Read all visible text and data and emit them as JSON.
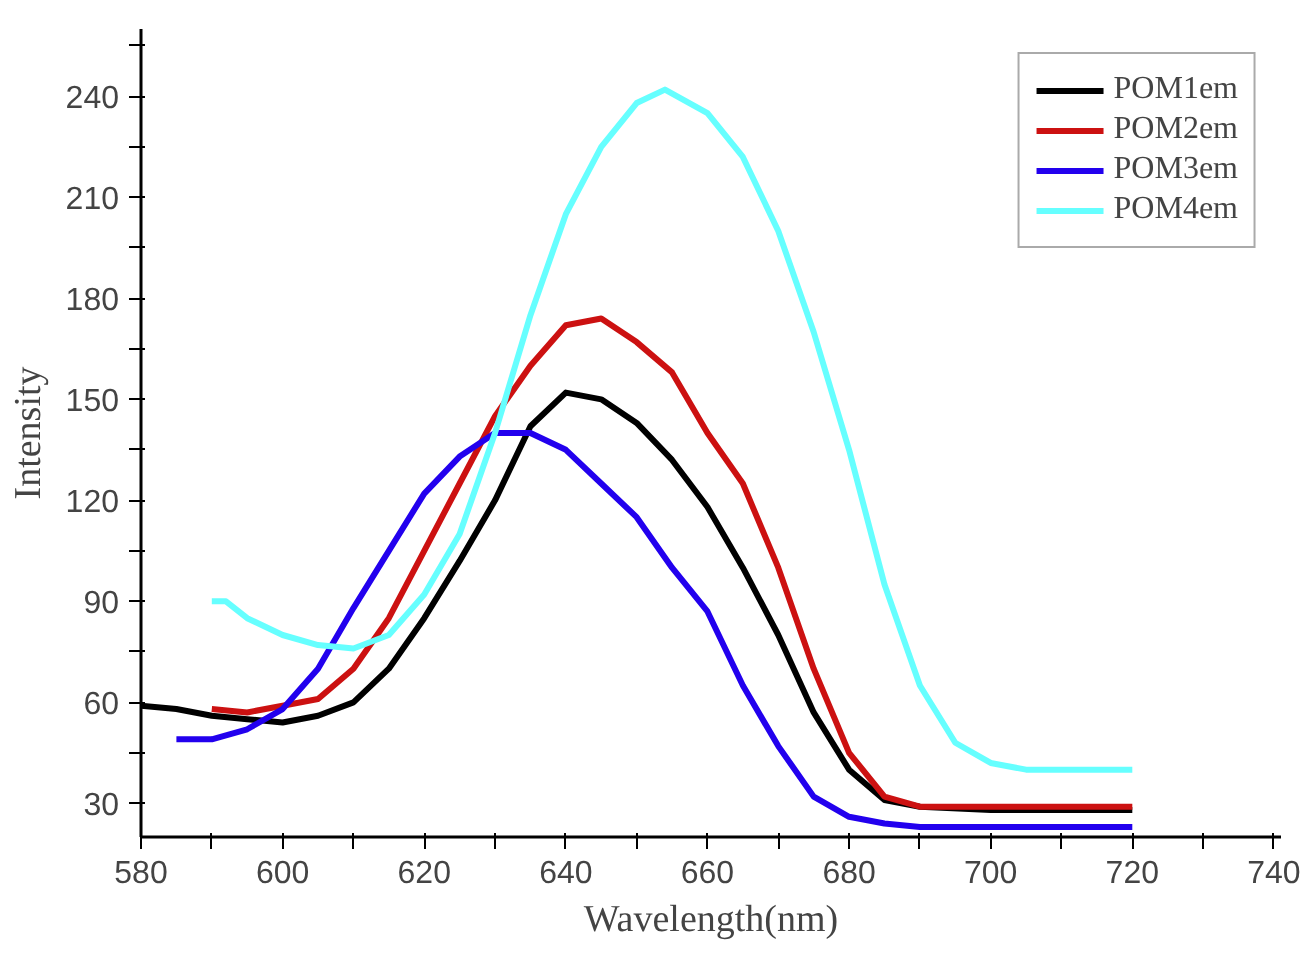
{
  "chart_data": {
    "type": "line",
    "xlabel": "Wavelength(nm)",
    "ylabel": "Intensity",
    "xlim": [
      580,
      741
    ],
    "ylim": [
      20,
      260
    ],
    "xticks": [
      580,
      {
        "value": 590,
        "label": null
      },
      600,
      {
        "value": 610,
        "label": null
      },
      620,
      {
        "value": 630,
        "label": null
      },
      640,
      {
        "value": 650,
        "label": null
      },
      660,
      {
        "value": 670,
        "label": null
      },
      680,
      {
        "value": 690,
        "label": null
      },
      700,
      {
        "value": 710,
        "label": null
      },
      720,
      {
        "value": 730,
        "label": null
      },
      740
    ],
    "yticks": [
      30,
      {
        "value": 45,
        "label": null
      },
      60,
      {
        "value": 75,
        "label": null
      },
      90,
      {
        "value": 105,
        "label": null
      },
      120,
      {
        "value": 135,
        "label": null
      },
      150,
      {
        "value": 165,
        "label": null
      },
      180,
      {
        "value": 195,
        "label": null
      },
      210,
      {
        "value": 225,
        "label": null
      },
      240,
      {
        "value": 255,
        "label": null
      }
    ],
    "grid": false,
    "legend": "top right",
    "marker": "none",
    "line_style": "solid",
    "series": [
      {
        "name": "POM1em",
        "color": "#000000",
        "x": [
          580,
          585,
          590,
          595,
          600,
          605,
          610,
          615,
          620,
          625,
          630,
          635,
          640,
          645,
          650,
          655,
          660,
          665,
          670,
          675,
          680,
          685,
          690,
          700,
          710,
          720
        ],
        "values": [
          59,
          58,
          56,
          55,
          54,
          56,
          60,
          70,
          85,
          102,
          120,
          142,
          152,
          150,
          143,
          132,
          118,
          100,
          80,
          57,
          40,
          31,
          29,
          28,
          28,
          28
        ]
      },
      {
        "name": "POM2em",
        "color": "#cc1111",
        "x": [
          590,
          595,
          600,
          605,
          610,
          615,
          620,
          625,
          630,
          635,
          640,
          645,
          650,
          655,
          660,
          665,
          670,
          675,
          680,
          685,
          690,
          700,
          710,
          720
        ],
        "values": [
          58,
          57,
          59,
          61,
          70,
          85,
          105,
          125,
          145,
          160,
          172,
          174,
          167,
          158,
          140,
          125,
          100,
          70,
          45,
          32,
          29,
          29,
          29,
          29
        ]
      },
      {
        "name": "POM3em",
        "color": "#2200ee",
        "x": [
          585,
          590,
          595,
          600,
          605,
          610,
          615,
          620,
          625,
          630,
          635,
          640,
          645,
          650,
          655,
          660,
          665,
          670,
          675,
          680,
          685,
          690,
          700,
          710,
          720
        ],
        "values": [
          49,
          49,
          52,
          58,
          70,
          88,
          105,
          122,
          133,
          140,
          140,
          135,
          125,
          115,
          100,
          87,
          65,
          47,
          32,
          26,
          24,
          23,
          23,
          23,
          23
        ]
      },
      {
        "name": "POM4em",
        "color": "#66ffff",
        "x": [
          590,
          592,
          595,
          600,
          605,
          610,
          615,
          620,
          625,
          630,
          635,
          640,
          645,
          650,
          654,
          660,
          665,
          670,
          675,
          680,
          685,
          690,
          695,
          700,
          705,
          710,
          715,
          720
        ],
        "values": [
          90,
          90,
          85,
          80,
          77,
          76,
          80,
          92,
          110,
          140,
          175,
          205,
          225,
          238,
          242,
          235,
          222,
          200,
          170,
          135,
          95,
          65,
          48,
          42,
          40,
          40,
          40,
          40
        ]
      }
    ]
  }
}
